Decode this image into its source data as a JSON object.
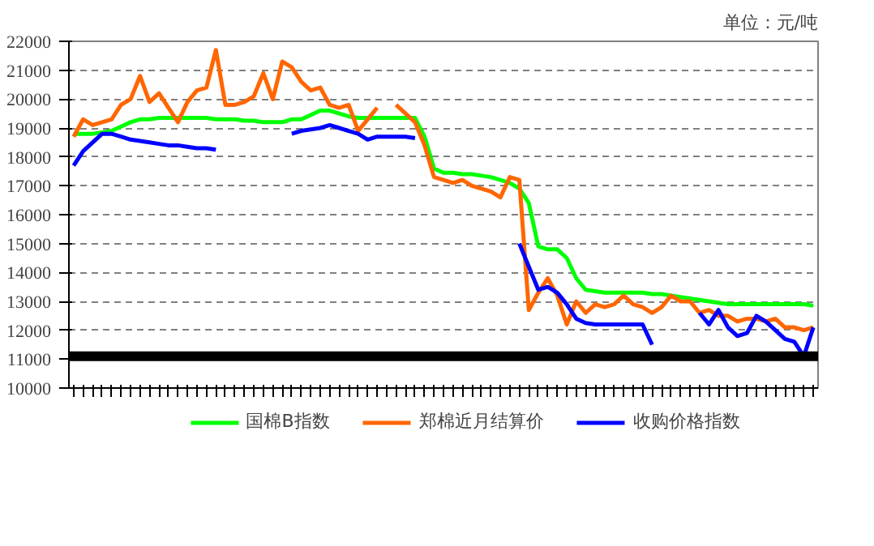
{
  "chart_data": {
    "type": "line",
    "annotations": [
      "单位：元/吨"
    ],
    "categories": [
      null,
      null,
      null,
      null,
      null,
      null,
      null,
      null,
      null,
      null,
      null,
      null,
      null,
      null,
      null,
      null,
      null,
      null,
      null,
      null,
      null,
      null,
      null,
      null,
      null,
      null,
      null,
      null,
      null,
      null,
      null,
      null,
      null,
      null,
      null,
      null,
      null,
      null,
      null,
      null,
      null,
      null,
      null,
      null,
      null,
      null,
      null,
      null,
      null,
      null,
      null,
      null,
      null,
      null,
      null,
      null,
      null,
      null,
      null,
      null,
      null,
      null,
      null,
      null,
      null,
      null,
      null,
      null,
      null,
      null,
      null,
      null,
      null,
      null,
      null,
      null,
      null,
      null,
      null
    ],
    "series": [
      {
        "name": "国棉B指数",
        "color": "#00ff00",
        "values": [
          18800,
          18800,
          18800,
          18850,
          18900,
          19050,
          19200,
          19300,
          19300,
          19350,
          19350,
          19350,
          19350,
          19350,
          19350,
          19300,
          19300,
          19300,
          19250,
          19250,
          19200,
          19200,
          19200,
          19300,
          19300,
          19450,
          19600,
          19600,
          19500,
          19400,
          19350,
          19350,
          19350,
          19350,
          19350,
          19350,
          19350,
          18700,
          17600,
          17450,
          17450,
          17400,
          17400,
          17350,
          17300,
          17200,
          17100,
          16900,
          16400,
          14900,
          14800,
          14800,
          14500,
          13800,
          13400,
          13350,
          13300,
          13300,
          13300,
          13300,
          13300,
          13250,
          13250,
          13200,
          13150,
          13100,
          13050,
          13000,
          12950,
          12900,
          12900,
          12900,
          12900,
          12900,
          12900,
          12900,
          12900,
          12900,
          12850
        ]
      },
      {
        "name": "郑棉近月结算价",
        "color": "#ff6600",
        "values": [
          18700,
          19300,
          19100,
          19200,
          19300,
          19800,
          20000,
          20800,
          19900,
          20200,
          19700,
          19200,
          19900,
          20300,
          20400,
          21700,
          19800,
          19800,
          19900,
          20100,
          20900,
          20000,
          21300,
          21100,
          20600,
          20300,
          20400,
          19800,
          19700,
          19800,
          18900,
          19300,
          19700,
          null,
          19800,
          19500,
          19200,
          18400,
          17300,
          17200,
          17100,
          17200,
          17000,
          16900,
          16800,
          16600,
          17300,
          17200,
          12700,
          13300,
          13800,
          13200,
          12200,
          13000,
          12600,
          12900,
          12800,
          12900,
          13200,
          12900,
          12800,
          12600,
          12800,
          13200,
          13000,
          13000,
          12600,
          12700,
          12500,
          12500,
          12300,
          12400,
          12400,
          12300,
          12400,
          12100,
          12100,
          12000,
          12100
        ]
      },
      {
        "name": "收购价格指数",
        "color": "#0000ff",
        "values": [
          17700,
          18200,
          18500,
          18800,
          18800,
          18700,
          18600,
          18550,
          18500,
          18450,
          18400,
          18400,
          18350,
          18300,
          18300,
          18250,
          null,
          null,
          null,
          null,
          null,
          null,
          null,
          18800,
          18900,
          18950,
          19000,
          19100,
          19000,
          18900,
          18800,
          18600,
          18700,
          18700,
          18700,
          18700,
          18650,
          null,
          null,
          null,
          null,
          null,
          null,
          null,
          null,
          null,
          null,
          15000,
          14200,
          13400,
          13500,
          13300,
          12900,
          12400,
          12250,
          12200,
          12200,
          12200,
          12200,
          12200,
          12200,
          11500,
          null,
          null,
          null,
          null,
          12600,
          12200,
          12700,
          12100,
          11800,
          11900,
          12500,
          12300,
          12000,
          11700,
          11600,
          11100,
          12100
        ]
      }
    ],
    "ylim": [
      10000,
      22000
    ],
    "yticks": [
      10000,
      11000,
      12000,
      13000,
      14000,
      15000,
      16000,
      17000,
      18000,
      19000,
      20000,
      21000,
      22000
    ],
    "grid": "y",
    "legend": "bottom",
    "line_style": "solid",
    "ref_lines": [
      {
        "axis": "y",
        "value": 11100,
        "color": "#000000"
      }
    ]
  }
}
